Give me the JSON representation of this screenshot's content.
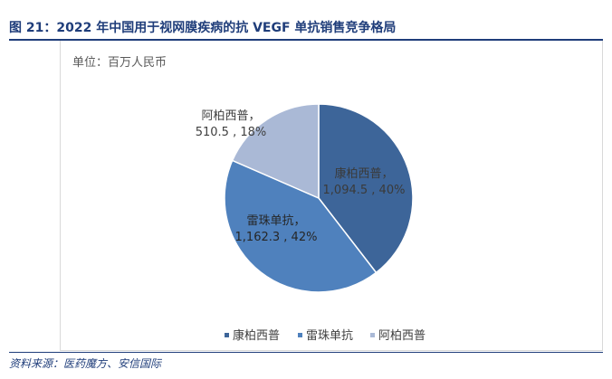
{
  "title": "图 21：2022 年中国用于视网膜疾病的抗 VEGF 单抗销售竞争格局",
  "unit_label": "单位：百万人民币",
  "source": "资料来源：医药魔方、安信国际",
  "chart_data": {
    "type": "pie",
    "title": "",
    "unit": "百万人民币",
    "slices": [
      {
        "name": "康柏西普",
        "value": 1094.5,
        "value_label": "1,094.5",
        "percent": 40,
        "percent_label": "40%",
        "color": "#3d6599"
      },
      {
        "name": "雷珠单抗",
        "value": 1162.3,
        "value_label": "1,162.3",
        "percent": 42,
        "percent_label": "42%",
        "color": "#4f81bd"
      },
      {
        "name": "阿柏西普",
        "value": 510.5,
        "value_label": "510.5",
        "percent": 18,
        "percent_label": "18%",
        "color": "#aab9d6"
      }
    ],
    "legend": {
      "placement": "bottom-right",
      "entries": [
        "康柏西普",
        "雷珠单抗",
        "阿柏西普"
      ]
    }
  }
}
